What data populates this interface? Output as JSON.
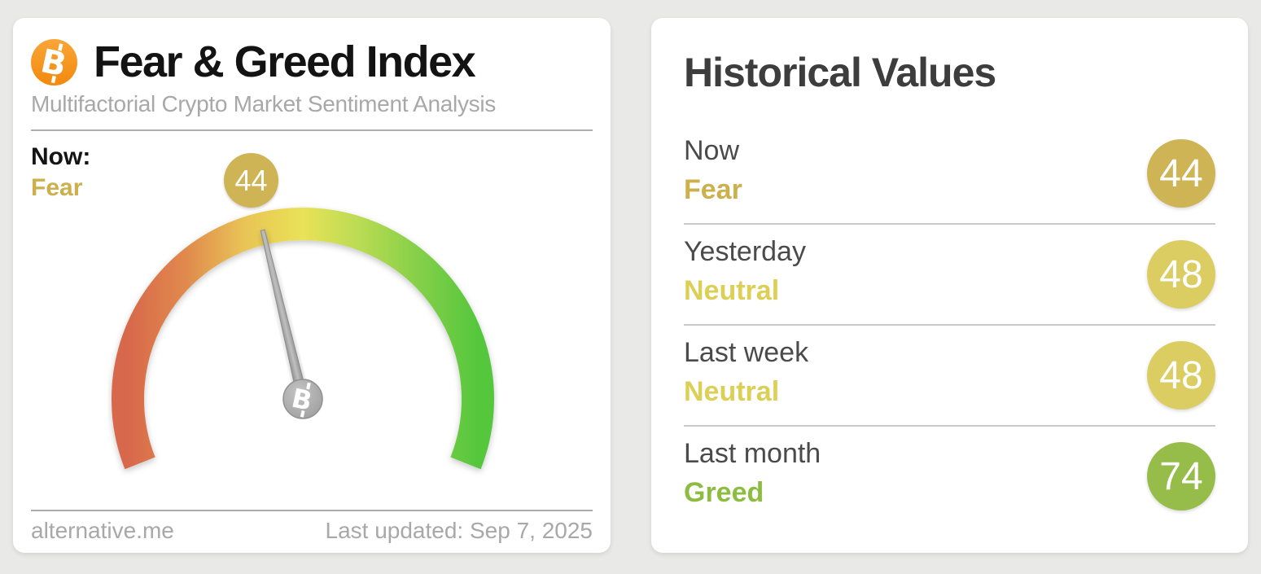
{
  "left_card": {
    "title": "Fear & Greed Index",
    "subtitle": "Multifactorial Crypto Market Sentiment Analysis",
    "now_label": "Now:",
    "now_classification": "Fear",
    "now_value": "44",
    "classification_color": "#cbb04c",
    "badge_color": "#cfb456",
    "footer_left": "alternative.me",
    "footer_right": "Last updated: Sep 7, 2025"
  },
  "right_card": {
    "title": "Historical Values",
    "rows": [
      {
        "label": "Now",
        "classification": "Fear",
        "value": "44",
        "text_color": "#cbb04c",
        "badge_color": "#cfb456"
      },
      {
        "label": "Yesterday",
        "classification": "Neutral",
        "value": "48",
        "text_color": "#dccf56",
        "badge_color": "#dbcd62"
      },
      {
        "label": "Last week",
        "classification": "Neutral",
        "value": "48",
        "text_color": "#dccf56",
        "badge_color": "#dbcd62"
      },
      {
        "label": "Last month",
        "classification": "Greed",
        "value": "74",
        "text_color": "#8cbd41",
        "badge_color": "#96bd4a"
      }
    ]
  },
  "colors": {
    "bitcoin_orange": "#f7931a",
    "fear_gold": "#cbb04c",
    "neutral_yellow": "#dccf56",
    "greed_green": "#8cbd41",
    "needle_gray": "#9e9e9e"
  },
  "chart_data": {
    "type": "gauge",
    "title": "Fear & Greed Index",
    "subtitle": "Multifactorial Crypto Market Sentiment Analysis",
    "source": "alternative.me",
    "last_updated": "Sep 7, 2025",
    "min": 0,
    "max": 100,
    "value": 44,
    "classification": "Fear",
    "gauge_span_degrees": 223,
    "scale_gradient": [
      "#d8684b",
      "#e08a4e",
      "#e9c455",
      "#e9e258",
      "#b8db52",
      "#84cf49",
      "#55c73d"
    ],
    "needle_color": "#9e9e9e",
    "historical": [
      {
        "period": "Now",
        "value": 44,
        "classification": "Fear"
      },
      {
        "period": "Yesterday",
        "value": 48,
        "classification": "Neutral"
      },
      {
        "period": "Last week",
        "value": 48,
        "classification": "Neutral"
      },
      {
        "period": "Last month",
        "value": 74,
        "classification": "Greed"
      }
    ]
  }
}
